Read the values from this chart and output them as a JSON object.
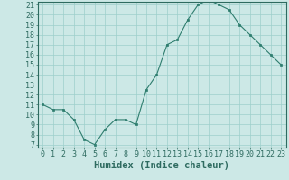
{
  "x": [
    0,
    1,
    2,
    3,
    4,
    5,
    6,
    7,
    8,
    9,
    10,
    11,
    12,
    13,
    14,
    15,
    16,
    17,
    18,
    19,
    20,
    21,
    22,
    23
  ],
  "y": [
    11,
    10.5,
    10.5,
    9.5,
    7.5,
    7,
    8.5,
    9.5,
    9.5,
    9,
    12.5,
    14,
    17,
    17.5,
    19.5,
    21,
    21.5,
    21,
    20.5,
    19,
    18,
    17,
    16,
    15
  ],
  "line_color": "#2e7d6e",
  "marker_color": "#2e7d6e",
  "bg_color": "#cce8e6",
  "grid_color": "#9ecfcb",
  "axis_color": "#2e6b60",
  "xlabel": "Humidex (Indice chaleur)",
  "ylim_min": 7,
  "ylim_max": 21,
  "xlim_min": 0,
  "xlim_max": 23,
  "yticks": [
    7,
    8,
    9,
    10,
    11,
    12,
    13,
    14,
    15,
    16,
    17,
    18,
    19,
    20,
    21
  ],
  "xticks": [
    0,
    1,
    2,
    3,
    4,
    5,
    6,
    7,
    8,
    9,
    10,
    11,
    12,
    13,
    14,
    15,
    16,
    17,
    18,
    19,
    20,
    21,
    22,
    23
  ],
  "xlabel_fontsize": 7.5,
  "tick_fontsize": 6.0
}
